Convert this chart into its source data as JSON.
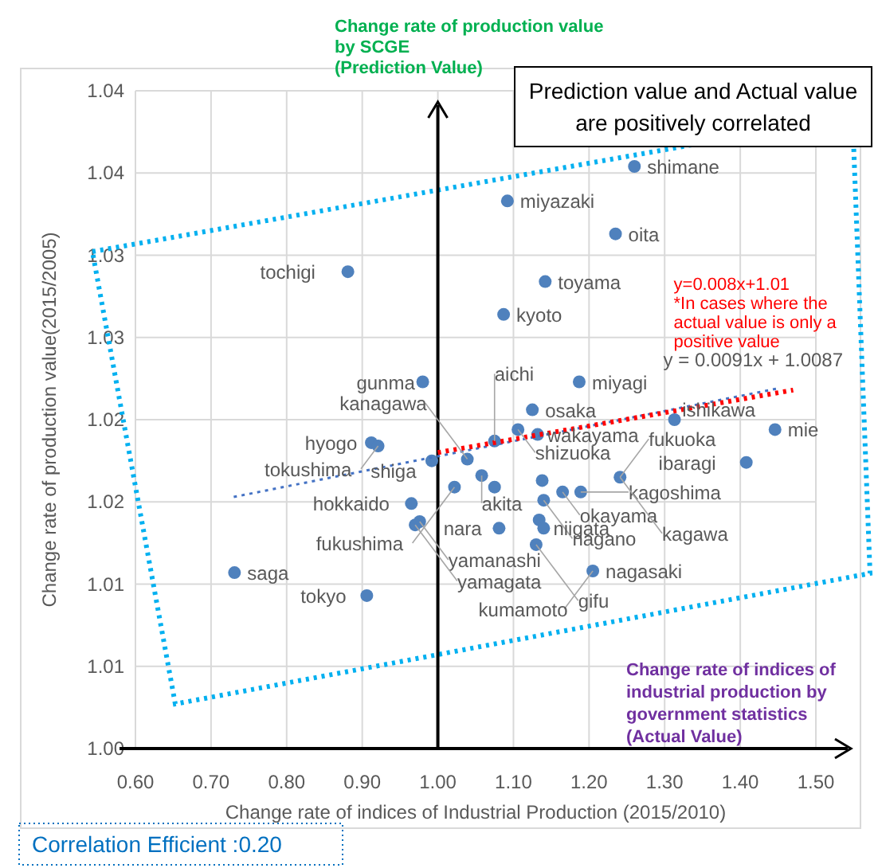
{
  "chart_data": {
    "type": "scatter",
    "xlabel": "Change rate of indices of Industrial Production (2015/2010)",
    "ylabel": "Change rate of production value(2015/2005)",
    "xlim": [
      0.6,
      1.5
    ],
    "xticks": [
      {
        "value": 0.6,
        "label": "0.60"
      },
      {
        "value": 0.7,
        "label": "0.70"
      },
      {
        "value": 0.8,
        "label": "0.80"
      },
      {
        "value": 0.9,
        "label": "0.90"
      },
      {
        "value": 1.0,
        "label": "1.00"
      },
      {
        "value": 1.1,
        "label": "1.10"
      },
      {
        "value": 1.2,
        "label": "1.20"
      },
      {
        "value": 1.3,
        "label": "1.30"
      },
      {
        "value": 1.4,
        "label": "1.40"
      },
      {
        "value": 1.5,
        "label": "1.50"
      }
    ],
    "ylim": [
      1.0,
      1.04
    ],
    "yticks": [
      {
        "value": 1.0,
        "label": "1.00"
      },
      {
        "value": 1.005,
        "label": "1.01"
      },
      {
        "value": 1.01,
        "label": "1.01"
      },
      {
        "value": 1.015,
        "label": "1.02"
      },
      {
        "value": 1.02,
        "label": "1.02"
      },
      {
        "value": 1.025,
        "label": "1.03"
      },
      {
        "value": 1.03,
        "label": "1.03"
      },
      {
        "value": 1.035,
        "label": "1.04"
      },
      {
        "value": 1.04,
        "label": "1.04"
      }
    ],
    "grid": true,
    "marker": "circle",
    "ref_lines": [
      {
        "axis": "x",
        "value": 1.0,
        "color": "#000000"
      }
    ],
    "series": [
      {
        "color": "#4f81bd",
        "x": [
          1.26,
          1.092,
          1.235,
          0.881,
          1.142,
          1.087,
          0.98,
          1.187,
          1.125,
          1.106,
          1.132,
          1.313,
          1.446,
          1.408,
          0.912,
          0.921,
          0.992,
          1.075,
          1.039,
          1.058,
          1.022,
          1.075,
          0.965,
          0.976,
          0.97,
          1.081,
          1.138,
          1.165,
          1.189,
          1.241,
          1.14,
          1.134,
          1.14,
          1.13,
          1.205,
          0.731,
          0.906
        ],
        "values": [
          1.0354,
          1.0333,
          1.0313,
          1.029,
          1.0284,
          1.0264,
          1.0223,
          1.0223,
          1.0206,
          1.0194,
          1.0191,
          1.02,
          1.0194,
          1.0174,
          1.0186,
          1.0184,
          1.0175,
          1.0187,
          1.0176,
          1.0166,
          1.0159,
          1.0159,
          1.0149,
          1.0138,
          1.0136,
          1.0134,
          1.0163,
          1.0156,
          1.0156,
          1.0165,
          1.0151,
          1.0139,
          1.0134,
          1.0124,
          1.0108,
          1.0107,
          1.0093
        ]
      },
      {
        "type": "line",
        "color": "#4472c4",
        "line_style": "dotted",
        "marker": "none",
        "x": [
          0.73,
          1.45
        ],
        "values": [
          1.0153,
          1.0219
        ]
      },
      {
        "type": "line",
        "color": "#ff0000",
        "line_style": "dotted",
        "marker": "none",
        "x": [
          1.0,
          1.47
        ],
        "values": [
          1.018,
          1.0218
        ]
      }
    ],
    "annotations": [
      {
        "text": "shimane",
        "x": 1.26,
        "y": 1.0354
      },
      {
        "text": "miyazaki",
        "x": 1.092,
        "y": 1.0333
      },
      {
        "text": "oita",
        "x": 1.235,
        "y": 1.0313
      },
      {
        "text": "tochigi",
        "x": 0.881,
        "y": 1.029
      },
      {
        "text": "toyama",
        "x": 1.142,
        "y": 1.0284
      },
      {
        "text": "kyoto",
        "x": 1.087,
        "y": 1.0264
      },
      {
        "text": "gunma",
        "x": 0.98,
        "y": 1.0223
      },
      {
        "text": "miyagi",
        "x": 1.187,
        "y": 1.0223
      },
      {
        "text": "osaka",
        "x": 1.125,
        "y": 1.0206
      },
      {
        "text": "shizuoka",
        "x": 1.106,
        "y": 1.0194
      },
      {
        "text": "wakayama",
        "x": 1.132,
        "y": 1.0191
      },
      {
        "text": "ishikawa",
        "x": 1.313,
        "y": 1.02
      },
      {
        "text": "mie",
        "x": 1.446,
        "y": 1.0194
      },
      {
        "text": "ibaragi",
        "x": 1.408,
        "y": 1.0174
      },
      {
        "text": "hyogo",
        "x": 0.912,
        "y": 1.0186
      },
      {
        "text": "tokushima",
        "x": 0.921,
        "y": 1.0184
      },
      {
        "text": "shiga",
        "x": 0.992,
        "y": 1.0175
      },
      {
        "text": "aichi",
        "x": 1.075,
        "y": 1.0187
      },
      {
        "text": "kanagawa",
        "x": 1.039,
        "y": 1.0176
      },
      {
        "text": "akita",
        "x": 1.058,
        "y": 1.0166
      },
      {
        "text": "fukushima",
        "x": 1.022,
        "y": 1.0159
      },
      {
        "text": "hokkaido",
        "x": 0.965,
        "y": 1.0149
      },
      {
        "text": "yamanashi",
        "x": 0.976,
        "y": 1.0138
      },
      {
        "text": "yamagata",
        "x": 0.97,
        "y": 1.0136
      },
      {
        "text": "nara",
        "x": 1.081,
        "y": 1.0134
      },
      {
        "text": "okayama",
        "x": 1.165,
        "y": 1.0156
      },
      {
        "text": "kagoshima",
        "x": 1.189,
        "y": 1.0156
      },
      {
        "text": "fukuoka",
        "x": 1.241,
        "y": 1.0165
      },
      {
        "text": "kagawa",
        "x": 1.241,
        "y": 1.0165
      },
      {
        "text": "nagano",
        "x": 1.14,
        "y": 1.0151
      },
      {
        "text": "niigata",
        "x": 1.14,
        "y": 1.0134
      },
      {
        "text": "gifu",
        "x": 1.13,
        "y": 1.0124
      },
      {
        "text": "nagasaki",
        "x": 1.205,
        "y": 1.0108
      },
      {
        "text": "kumamoto",
        "x": 1.205,
        "y": 1.0108
      },
      {
        "text": "saga",
        "x": 0.731,
        "y": 1.0107
      },
      {
        "text": "tokyo",
        "x": 0.906,
        "y": 1.0093
      },
      {
        "text": "y = 0.0091x + 1.0087",
        "x": 1.45,
        "y": 1.0219
      },
      {
        "text": "y=0.008x+1.01\n*In cases where the\nactual value is only a\npositive value",
        "x": 1.47,
        "y": 1.0218
      },
      "Change rate of production value\nby SCGE\n(Prediction Value)",
      "Prediction value and Actual value\nare positively correlated",
      "Change rate of indices of\nindustrial production by\ngovernment statistics\n(Actual Value)",
      "Correlation Efficient :0.20"
    ]
  }
}
